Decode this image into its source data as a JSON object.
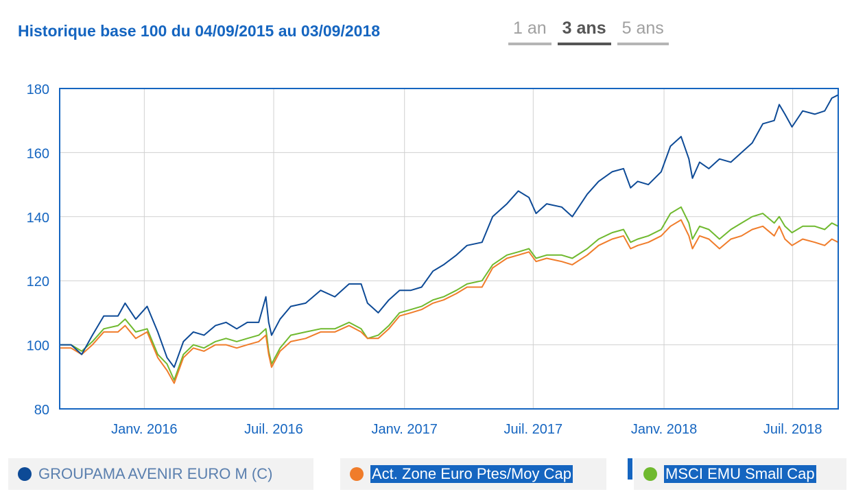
{
  "header": {
    "title": "Historique base 100 du 04/09/2015 au 03/09/2018",
    "tabs": [
      {
        "label": "1 an",
        "active": false
      },
      {
        "label": "3 ans",
        "active": true
      },
      {
        "label": "5 ans",
        "active": false
      }
    ]
  },
  "legend": [
    {
      "label": "GROUPAMA AVENIR EURO M (C)",
      "color": "#0d4a96",
      "selected": false
    },
    {
      "label": "Act. Zone Euro Ptes/Moy Cap",
      "color": "#f07c2a",
      "selected": true
    },
    {
      "label": "MSCI EMU Small Cap",
      "color": "#6fb92e",
      "selected": true
    }
  ],
  "colors": {
    "accent": "#1565c0",
    "axis": "#1565c0",
    "grid": "#d0d0d0"
  },
  "chart_data": {
    "type": "line",
    "title": "Historique base 100 du 04/09/2015 au 03/09/2018",
    "xlabel": "",
    "ylabel": "",
    "xlim": [
      "2015-09-04",
      "2018-09-03"
    ],
    "ylim": [
      80,
      180
    ],
    "yticks": [
      80,
      100,
      120,
      140,
      160,
      180
    ],
    "xticks": [
      {
        "date": "2016-01-01",
        "label": "Janv. 2016"
      },
      {
        "date": "2016-07-01",
        "label": "Juil. 2016"
      },
      {
        "date": "2017-01-01",
        "label": "Janv. 2017"
      },
      {
        "date": "2017-07-01",
        "label": "Juil. 2017"
      },
      {
        "date": "2018-01-01",
        "label": "Janv. 2018"
      },
      {
        "date": "2018-07-01",
        "label": "Juil. 2018"
      }
    ],
    "grid": true,
    "series": [
      {
        "name": "GROUPAMA AVENIR EURO M (C)",
        "color": "#0d4a96",
        "points": [
          [
            "2015-09-04",
            100
          ],
          [
            "2015-09-20",
            100
          ],
          [
            "2015-10-05",
            97
          ],
          [
            "2015-10-20",
            103
          ],
          [
            "2015-11-05",
            109
          ],
          [
            "2015-11-25",
            109
          ],
          [
            "2015-12-05",
            113
          ],
          [
            "2015-12-20",
            108
          ],
          [
            "2016-01-05",
            112
          ],
          [
            "2016-01-20",
            104
          ],
          [
            "2016-02-02",
            96
          ],
          [
            "2016-02-12",
            93
          ],
          [
            "2016-02-25",
            101
          ],
          [
            "2016-03-10",
            104
          ],
          [
            "2016-03-25",
            103
          ],
          [
            "2016-04-10",
            106
          ],
          [
            "2016-04-25",
            107
          ],
          [
            "2016-05-10",
            105
          ],
          [
            "2016-05-25",
            107
          ],
          [
            "2016-06-10",
            107
          ],
          [
            "2016-06-20",
            115
          ],
          [
            "2016-06-24",
            107
          ],
          [
            "2016-06-28",
            103
          ],
          [
            "2016-07-10",
            108
          ],
          [
            "2016-07-25",
            112
          ],
          [
            "2016-08-15",
            113
          ],
          [
            "2016-09-05",
            117
          ],
          [
            "2016-09-25",
            115
          ],
          [
            "2016-10-15",
            119
          ],
          [
            "2016-11-01",
            119
          ],
          [
            "2016-11-10",
            113
          ],
          [
            "2016-11-25",
            110
          ],
          [
            "2016-12-10",
            114
          ],
          [
            "2016-12-25",
            117
          ],
          [
            "2017-01-10",
            117
          ],
          [
            "2017-01-25",
            118
          ],
          [
            "2017-02-10",
            123
          ],
          [
            "2017-02-25",
            125
          ],
          [
            "2017-03-15",
            128
          ],
          [
            "2017-03-30",
            131
          ],
          [
            "2017-04-20",
            132
          ],
          [
            "2017-05-05",
            140
          ],
          [
            "2017-05-25",
            144
          ],
          [
            "2017-06-10",
            148
          ],
          [
            "2017-06-25",
            146
          ],
          [
            "2017-07-05",
            141
          ],
          [
            "2017-07-20",
            144
          ],
          [
            "2017-08-10",
            143
          ],
          [
            "2017-08-25",
            140
          ],
          [
            "2017-09-15",
            147
          ],
          [
            "2017-10-01",
            151
          ],
          [
            "2017-10-20",
            154
          ],
          [
            "2017-11-05",
            155
          ],
          [
            "2017-11-15",
            149
          ],
          [
            "2017-11-25",
            151
          ],
          [
            "2017-12-10",
            150
          ],
          [
            "2017-12-28",
            154
          ],
          [
            "2018-01-10",
            162
          ],
          [
            "2018-01-25",
            165
          ],
          [
            "2018-02-05",
            158
          ],
          [
            "2018-02-10",
            152
          ],
          [
            "2018-02-20",
            157
          ],
          [
            "2018-03-05",
            155
          ],
          [
            "2018-03-20",
            158
          ],
          [
            "2018-04-05",
            157
          ],
          [
            "2018-04-20",
            160
          ],
          [
            "2018-05-05",
            163
          ],
          [
            "2018-05-20",
            169
          ],
          [
            "2018-06-05",
            170
          ],
          [
            "2018-06-12",
            175
          ],
          [
            "2018-06-20",
            172
          ],
          [
            "2018-06-30",
            168
          ],
          [
            "2018-07-15",
            173
          ],
          [
            "2018-08-01",
            172
          ],
          [
            "2018-08-15",
            173
          ],
          [
            "2018-08-25",
            177
          ],
          [
            "2018-09-03",
            178
          ]
        ]
      },
      {
        "name": "Act. Zone Euro Ptes/Moy Cap",
        "color": "#f07c2a",
        "points": [
          [
            "2015-09-04",
            99
          ],
          [
            "2015-09-20",
            99
          ],
          [
            "2015-10-05",
            97
          ],
          [
            "2015-10-20",
            100
          ],
          [
            "2015-11-05",
            104
          ],
          [
            "2015-11-25",
            104
          ],
          [
            "2015-12-05",
            106
          ],
          [
            "2015-12-20",
            102
          ],
          [
            "2016-01-05",
            104
          ],
          [
            "2016-01-20",
            96
          ],
          [
            "2016-02-02",
            92
          ],
          [
            "2016-02-12",
            88
          ],
          [
            "2016-02-25",
            96
          ],
          [
            "2016-03-10",
            99
          ],
          [
            "2016-03-25",
            98
          ],
          [
            "2016-04-10",
            100
          ],
          [
            "2016-04-25",
            100
          ],
          [
            "2016-05-10",
            99
          ],
          [
            "2016-05-25",
            100
          ],
          [
            "2016-06-10",
            101
          ],
          [
            "2016-06-20",
            103
          ],
          [
            "2016-06-24",
            97
          ],
          [
            "2016-06-28",
            93
          ],
          [
            "2016-07-10",
            98
          ],
          [
            "2016-07-25",
            101
          ],
          [
            "2016-08-15",
            102
          ],
          [
            "2016-09-05",
            104
          ],
          [
            "2016-09-25",
            104
          ],
          [
            "2016-10-15",
            106
          ],
          [
            "2016-11-01",
            104
          ],
          [
            "2016-11-10",
            102
          ],
          [
            "2016-11-25",
            102
          ],
          [
            "2016-12-10",
            105
          ],
          [
            "2016-12-25",
            109
          ],
          [
            "2017-01-10",
            110
          ],
          [
            "2017-01-25",
            111
          ],
          [
            "2017-02-10",
            113
          ],
          [
            "2017-02-25",
            114
          ],
          [
            "2017-03-15",
            116
          ],
          [
            "2017-03-30",
            118
          ],
          [
            "2017-04-20",
            118
          ],
          [
            "2017-05-05",
            124
          ],
          [
            "2017-05-25",
            127
          ],
          [
            "2017-06-10",
            128
          ],
          [
            "2017-06-25",
            129
          ],
          [
            "2017-07-05",
            126
          ],
          [
            "2017-07-20",
            127
          ],
          [
            "2017-08-10",
            126
          ],
          [
            "2017-08-25",
            125
          ],
          [
            "2017-09-15",
            128
          ],
          [
            "2017-10-01",
            131
          ],
          [
            "2017-10-20",
            133
          ],
          [
            "2017-11-05",
            134
          ],
          [
            "2017-11-15",
            130
          ],
          [
            "2017-11-25",
            131
          ],
          [
            "2017-12-10",
            132
          ],
          [
            "2017-12-28",
            134
          ],
          [
            "2018-01-10",
            137
          ],
          [
            "2018-01-25",
            139
          ],
          [
            "2018-02-05",
            134
          ],
          [
            "2018-02-10",
            130
          ],
          [
            "2018-02-20",
            134
          ],
          [
            "2018-03-05",
            133
          ],
          [
            "2018-03-20",
            130
          ],
          [
            "2018-04-05",
            133
          ],
          [
            "2018-04-20",
            134
          ],
          [
            "2018-05-05",
            136
          ],
          [
            "2018-05-20",
            137
          ],
          [
            "2018-06-05",
            134
          ],
          [
            "2018-06-12",
            137
          ],
          [
            "2018-06-20",
            133
          ],
          [
            "2018-06-30",
            131
          ],
          [
            "2018-07-15",
            133
          ],
          [
            "2018-08-01",
            132
          ],
          [
            "2018-08-15",
            131
          ],
          [
            "2018-08-25",
            133
          ],
          [
            "2018-09-03",
            132
          ]
        ]
      },
      {
        "name": "MSCI EMU Small Cap",
        "color": "#6fb92e",
        "points": [
          [
            "2015-09-04",
            100
          ],
          [
            "2015-09-20",
            100
          ],
          [
            "2015-10-05",
            98
          ],
          [
            "2015-10-20",
            101
          ],
          [
            "2015-11-05",
            105
          ],
          [
            "2015-11-25",
            106
          ],
          [
            "2015-12-05",
            108
          ],
          [
            "2015-12-20",
            104
          ],
          [
            "2016-01-05",
            105
          ],
          [
            "2016-01-20",
            97
          ],
          [
            "2016-02-02",
            94
          ],
          [
            "2016-02-12",
            89
          ],
          [
            "2016-02-25",
            97
          ],
          [
            "2016-03-10",
            100
          ],
          [
            "2016-03-25",
            99
          ],
          [
            "2016-04-10",
            101
          ],
          [
            "2016-04-25",
            102
          ],
          [
            "2016-05-10",
            101
          ],
          [
            "2016-05-25",
            102
          ],
          [
            "2016-06-10",
            103
          ],
          [
            "2016-06-20",
            105
          ],
          [
            "2016-06-24",
            98
          ],
          [
            "2016-06-28",
            94
          ],
          [
            "2016-07-10",
            99
          ],
          [
            "2016-07-25",
            103
          ],
          [
            "2016-08-15",
            104
          ],
          [
            "2016-09-05",
            105
          ],
          [
            "2016-09-25",
            105
          ],
          [
            "2016-10-15",
            107
          ],
          [
            "2016-11-01",
            105
          ],
          [
            "2016-11-10",
            102
          ],
          [
            "2016-11-25",
            103
          ],
          [
            "2016-12-10",
            106
          ],
          [
            "2016-12-25",
            110
          ],
          [
            "2017-01-10",
            111
          ],
          [
            "2017-01-25",
            112
          ],
          [
            "2017-02-10",
            114
          ],
          [
            "2017-02-25",
            115
          ],
          [
            "2017-03-15",
            117
          ],
          [
            "2017-03-30",
            119
          ],
          [
            "2017-04-20",
            120
          ],
          [
            "2017-05-05",
            125
          ],
          [
            "2017-05-25",
            128
          ],
          [
            "2017-06-10",
            129
          ],
          [
            "2017-06-25",
            130
          ],
          [
            "2017-07-05",
            127
          ],
          [
            "2017-07-20",
            128
          ],
          [
            "2017-08-10",
            128
          ],
          [
            "2017-08-25",
            127
          ],
          [
            "2017-09-15",
            130
          ],
          [
            "2017-10-01",
            133
          ],
          [
            "2017-10-20",
            135
          ],
          [
            "2017-11-05",
            136
          ],
          [
            "2017-11-15",
            132
          ],
          [
            "2017-11-25",
            133
          ],
          [
            "2017-12-10",
            134
          ],
          [
            "2017-12-28",
            136
          ],
          [
            "2018-01-10",
            141
          ],
          [
            "2018-01-25",
            143
          ],
          [
            "2018-02-05",
            138
          ],
          [
            "2018-02-10",
            133
          ],
          [
            "2018-02-20",
            137
          ],
          [
            "2018-03-05",
            136
          ],
          [
            "2018-03-20",
            133
          ],
          [
            "2018-04-05",
            136
          ],
          [
            "2018-04-20",
            138
          ],
          [
            "2018-05-05",
            140
          ],
          [
            "2018-05-20",
            141
          ],
          [
            "2018-06-05",
            138
          ],
          [
            "2018-06-12",
            140
          ],
          [
            "2018-06-20",
            137
          ],
          [
            "2018-06-30",
            135
          ],
          [
            "2018-07-15",
            137
          ],
          [
            "2018-08-01",
            137
          ],
          [
            "2018-08-15",
            136
          ],
          [
            "2018-08-25",
            138
          ],
          [
            "2018-09-03",
            137
          ]
        ]
      }
    ]
  }
}
